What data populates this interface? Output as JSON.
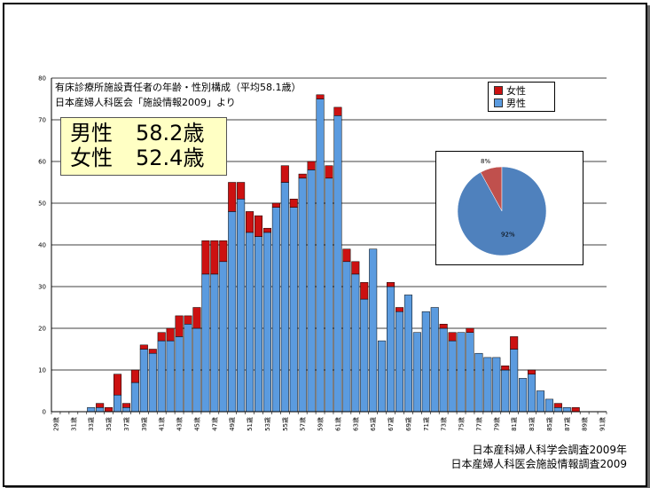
{
  "chart_data": {
    "type": "bar",
    "stacked": true,
    "title_lines": [
      "有床診療所施設責任者の年齢・性別構成（平均58.1歳）",
      "日本産婦人科医会「施設情報2009」より"
    ],
    "xlabel": "",
    "ylabel": "",
    "ylim": [
      0,
      80
    ],
    "yticks": [
      0,
      10,
      20,
      30,
      40,
      50,
      60,
      70,
      80
    ],
    "grid": true,
    "legend_placement": "top-right",
    "categories": [
      "29歳",
      "30歳",
      "31歳",
      "32歳",
      "33歳",
      "34歳",
      "35歳",
      "36歳",
      "37歳",
      "38歳",
      "39歳",
      "40歳",
      "41歳",
      "42歳",
      "43歳",
      "44歳",
      "45歳",
      "46歳",
      "47歳",
      "48歳",
      "49歳",
      "50歳",
      "51歳",
      "52歳",
      "53歳",
      "54歳",
      "55歳",
      "56歳",
      "57歳",
      "58歳",
      "59歳",
      "60歳",
      "61歳",
      "62歳",
      "63歳",
      "64歳",
      "65歳",
      "66歳",
      "67歳",
      "68歳",
      "69歳",
      "70歳",
      "71歳",
      "72歳",
      "73歳",
      "74歳",
      "75歳",
      "76歳",
      "77歳",
      "78歳",
      "79歳",
      "80歳",
      "81歳",
      "82歳",
      "83歳",
      "84歳",
      "85歳",
      "86歳",
      "87歳",
      "88歳",
      "89歳",
      "90歳",
      "91歳"
    ],
    "series": [
      {
        "name": "男性",
        "color": "#5b9bdf",
        "values": [
          0,
          0,
          0,
          0,
          1,
          1,
          0,
          4,
          1,
          7,
          15,
          14,
          17,
          17,
          18,
          21,
          20,
          33,
          33,
          36,
          48,
          51,
          43,
          42,
          43,
          49,
          55,
          49,
          56,
          58,
          75,
          56,
          71,
          36,
          33,
          27,
          39,
          17,
          30,
          24,
          28,
          19,
          24,
          25,
          20,
          17,
          19,
          19,
          14,
          13,
          13,
          10,
          15,
          8,
          9,
          5,
          3,
          1,
          1,
          0,
          0,
          0,
          0
        ]
      },
      {
        "name": "女性",
        "color": "#cc1111",
        "values": [
          0,
          0,
          0,
          0,
          0,
          1,
          1,
          5,
          1,
          3,
          1,
          1,
          2,
          3,
          5,
          2,
          5,
          8,
          8,
          5,
          7,
          4,
          5,
          5,
          1,
          1,
          4,
          2,
          1,
          2,
          1,
          3,
          2,
          3,
          3,
          4,
          0,
          0,
          1,
          1,
          0,
          0,
          0,
          0,
          1,
          2,
          0,
          1,
          0,
          0,
          0,
          1,
          3,
          0,
          1,
          0,
          0,
          1,
          0,
          1,
          0,
          0,
          0
        ]
      }
    ],
    "tick_labels_shown": [
      "29歳",
      "31歳",
      "33歳",
      "35歳",
      "37歳",
      "39歳",
      "41歳",
      "43歳",
      "45歳",
      "47歳",
      "49歳",
      "51歳",
      "53歳",
      "55歳",
      "57歳",
      "59歳",
      "61歳",
      "63歳",
      "65歳",
      "67歳",
      "69歳",
      "71歳",
      "73歳",
      "75歳",
      "77歳",
      "79歳",
      "81歳",
      "83歳",
      "85歳",
      "87歳",
      "89歳",
      "91歳"
    ],
    "inset_pie": {
      "slices": [
        {
          "name": "女性",
          "value": 8,
          "label": "8%",
          "color": "#c0504d"
        },
        {
          "name": "男性",
          "value": 92,
          "label": "92%",
          "color": "#4f81bd"
        }
      ]
    }
  },
  "summary": {
    "male_label": "男性",
    "male_value": "58.2歳",
    "female_label": "女性",
    "female_value": "52.4歳"
  },
  "legend": {
    "female_label": "女性",
    "female_color": "#cc1111",
    "male_label": "男性",
    "male_color": "#5b9bdf"
  },
  "sources": {
    "line1": "日本産科婦人科学会調査2009年",
    "line2": "日本産婦人科医会施設情報調査2009"
  }
}
